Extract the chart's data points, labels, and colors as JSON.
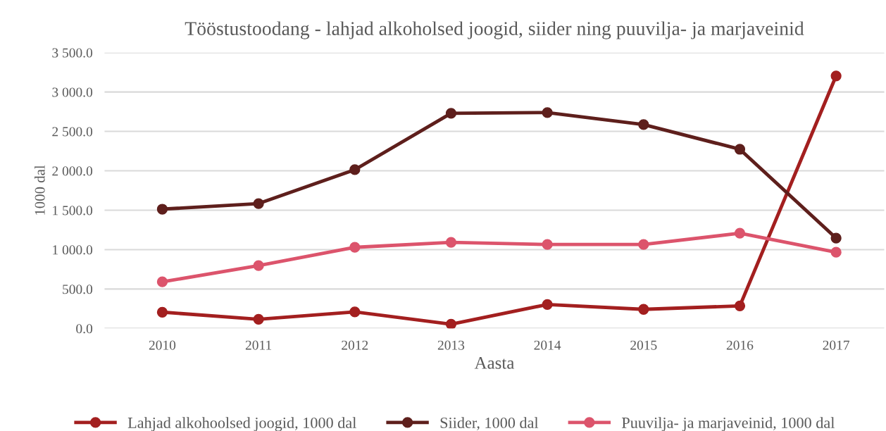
{
  "chart_data": {
    "type": "line",
    "title": "Tööstustoodang - lahjad alkoholsed joogid, siider ning puuvilja- ja marjaveinid",
    "xlabel": "Aasta",
    "ylabel": "1000 dal",
    "categories": [
      "2010",
      "2011",
      "2012",
      "2013",
      "2014",
      "2015",
      "2016",
      "2017"
    ],
    "series": [
      {
        "name": "Lahjad alkohoolsed joogid, 1000 dal",
        "color": "#a31f1f",
        "values": [
          206,
          116,
          210,
          54,
          304,
          242,
          286,
          3204
        ]
      },
      {
        "name": "Siider, 1000 dal",
        "color": "#5e1f1c",
        "values": [
          1513,
          1584,
          2014,
          2730,
          2739,
          2587,
          2273,
          1146
        ]
      },
      {
        "name": "Puuvilja- ja marjaveinid, 1000 dal",
        "color": "#dc546c",
        "values": [
          591,
          797,
          1029,
          1092,
          1065,
          1065,
          1208,
          967
        ]
      }
    ],
    "ylim": [
      0,
      3500
    ],
    "yticks": [
      {
        "value": 0,
        "label": "0.0"
      },
      {
        "value": 500,
        "label": "500.0"
      },
      {
        "value": 1000,
        "label": "1 000.0"
      },
      {
        "value": 1500,
        "label": "1 500.0"
      },
      {
        "value": 2000,
        "label": "2 000.0"
      },
      {
        "value": 2500,
        "label": "2 500.0"
      },
      {
        "value": 3000,
        "label": "3 000.0"
      },
      {
        "value": 3500,
        "label": "3 500.0"
      }
    ],
    "grid": "y",
    "legend": "bottom",
    "marker": "circle",
    "line_style": "solid"
  }
}
